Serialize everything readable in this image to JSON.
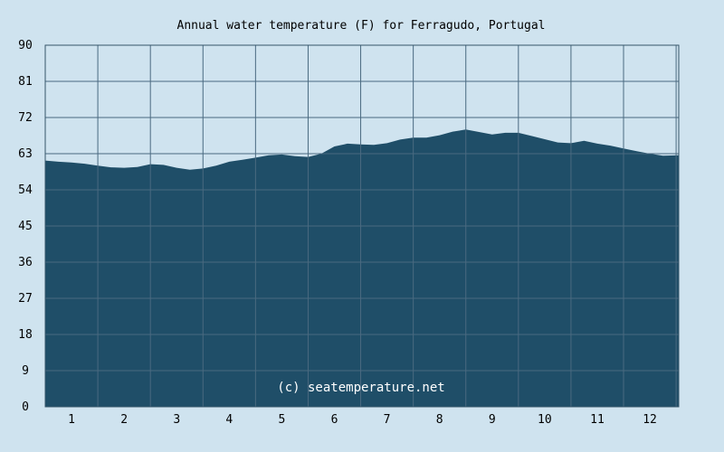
{
  "chart_data": {
    "type": "area",
    "title": "Annual water temperature (F) for Ferragudo, Portugal",
    "xlabel": "",
    "ylabel": "",
    "ylim": [
      0,
      90
    ],
    "xlim": [
      0.5,
      12.55
    ],
    "yticks": [
      "0",
      "9",
      "18",
      "27",
      "36",
      "45",
      "54",
      "63",
      "72",
      "81",
      "90"
    ],
    "xticks": [
      "1",
      "2",
      "3",
      "4",
      "5",
      "6",
      "7",
      "8",
      "9",
      "10",
      "11",
      "12"
    ],
    "grid": true,
    "watermark": "(c) seatemperature.net",
    "colors": {
      "background": "#cfe3ef",
      "area_fill": "#1f4e68",
      "grid": "#4a6a80",
      "axis": "#36556a"
    },
    "series": [
      {
        "x": [
          0.5,
          0.75,
          1.0,
          1.25,
          1.5,
          1.75,
          2.0,
          2.25,
          2.5,
          2.75,
          3.0,
          3.25,
          3.5,
          3.75,
          4.0,
          4.25,
          4.5,
          4.75,
          5.0,
          5.25,
          5.5,
          5.75,
          6.0,
          6.25,
          6.5,
          6.75,
          7.0,
          7.25,
          7.5,
          7.75,
          8.0,
          8.25,
          8.5,
          8.75,
          9.0,
          9.25,
          9.5,
          9.75,
          10.0,
          10.25,
          10.5,
          10.75,
          11.0,
          11.25,
          11.5,
          11.75,
          12.0,
          12.25,
          12.55
        ],
        "values": [
          61.3,
          61.0,
          60.8,
          60.5,
          60.0,
          59.6,
          59.5,
          59.7,
          60.4,
          60.2,
          59.5,
          59.0,
          59.3,
          60.0,
          61.0,
          61.5,
          62.0,
          62.6,
          62.8,
          62.4,
          62.2,
          63.0,
          64.8,
          65.5,
          65.3,
          65.2,
          65.6,
          66.5,
          67.0,
          67.0,
          67.6,
          68.5,
          69.0,
          68.4,
          67.8,
          68.2,
          68.2,
          67.4,
          66.6,
          65.8,
          65.6,
          66.2,
          65.5,
          65.0,
          64.3,
          63.6,
          63.0,
          62.5,
          62.6
        ]
      }
    ]
  }
}
